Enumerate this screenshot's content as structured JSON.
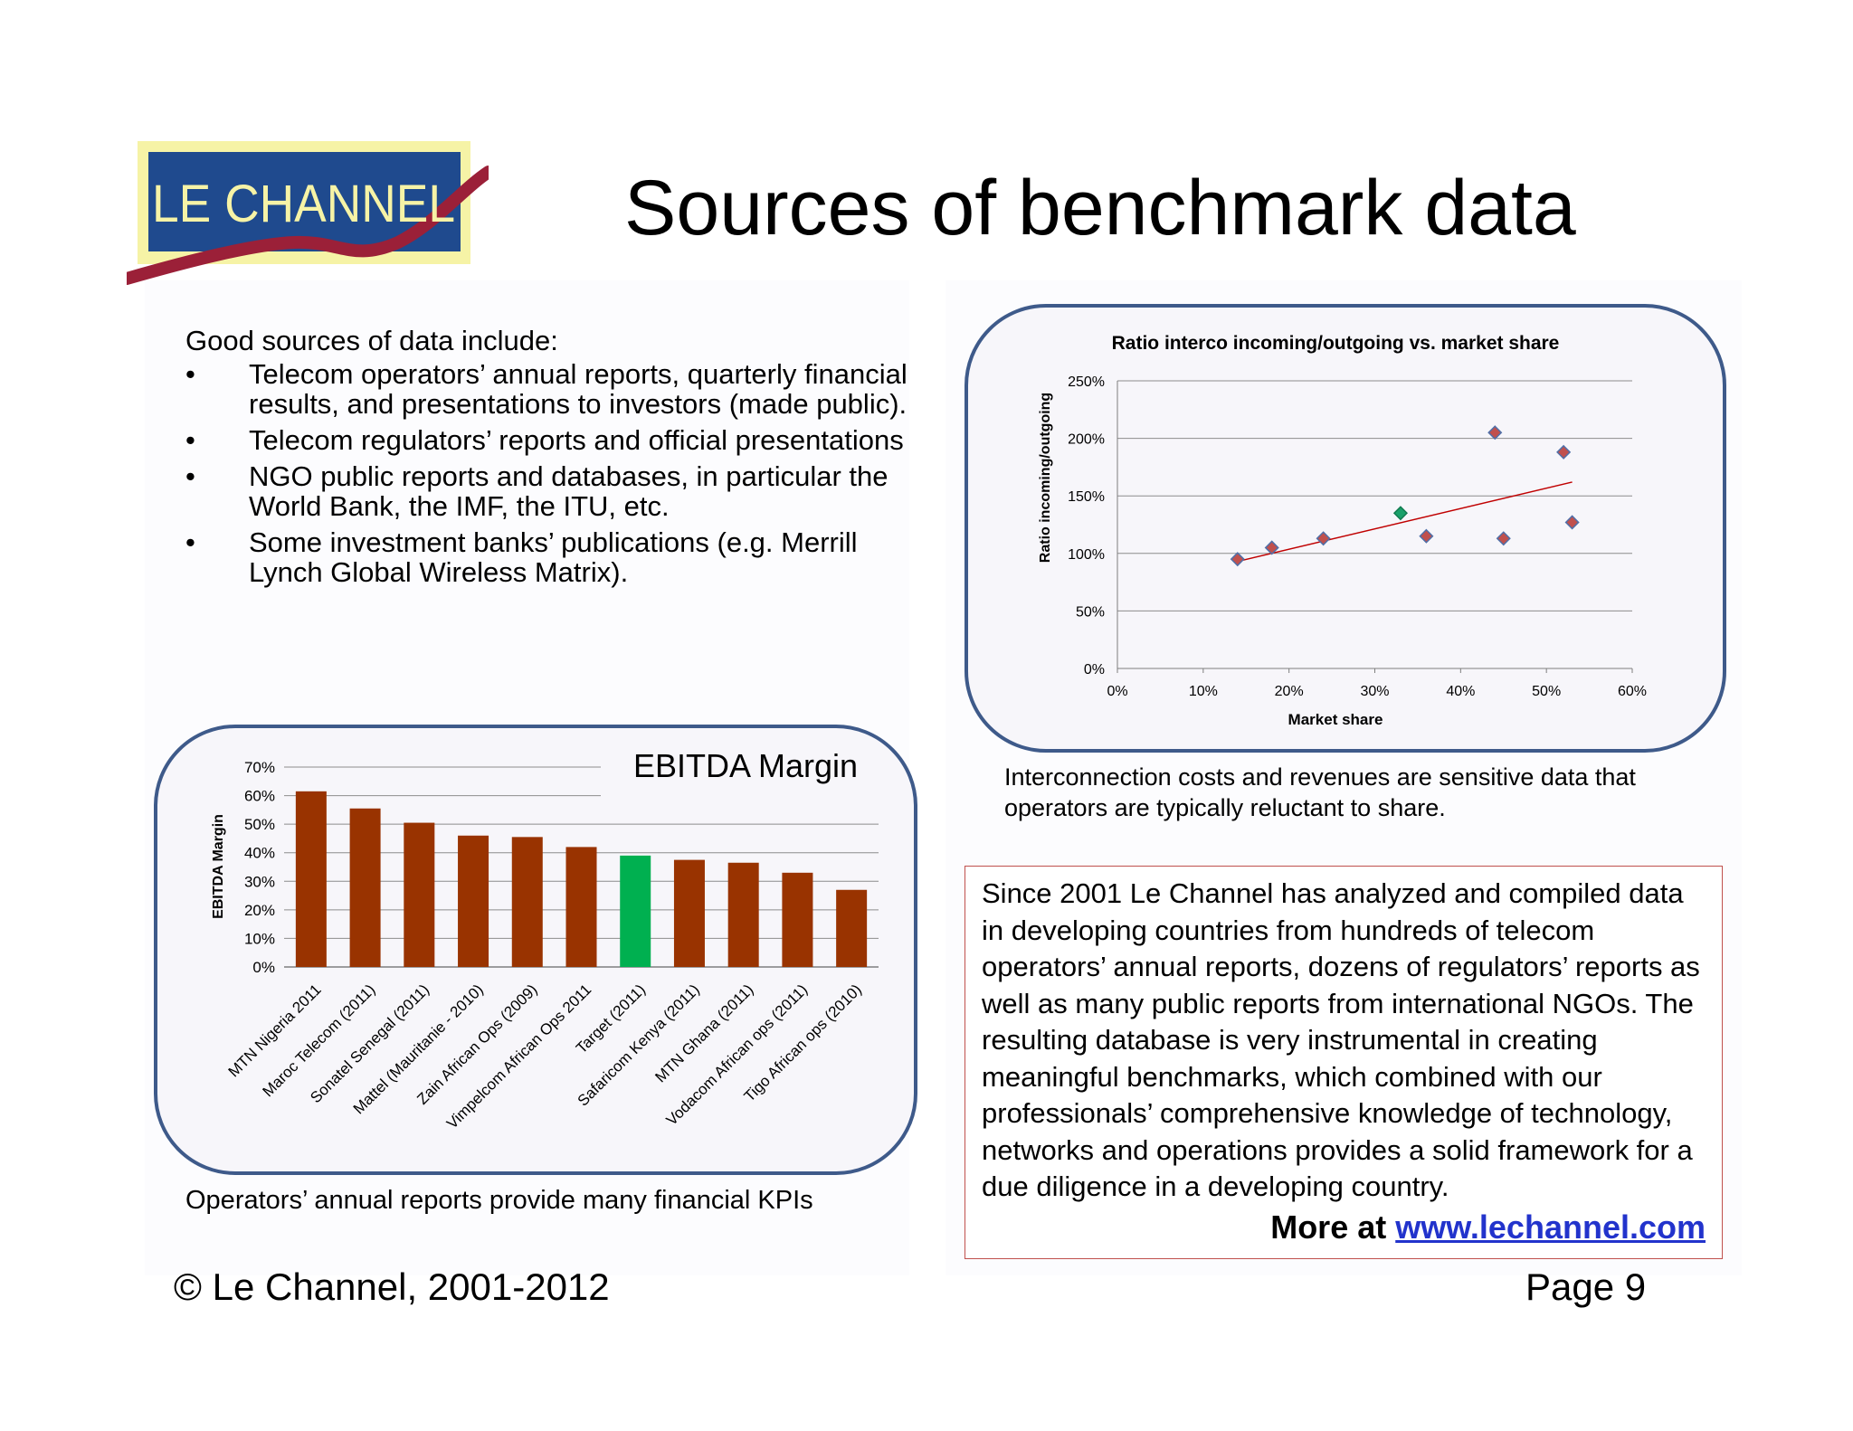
{
  "logo": {
    "text": "LE CHANNEL"
  },
  "title": "Sources of benchmark data",
  "intro": {
    "lead": "Good sources of data include:",
    "bullets": [
      "Telecom operators’ annual reports, quarterly financial results, and presentations to investors (made public).",
      "Telecom regulators’ reports and official presentations",
      "NGO public reports and databases, in particular the World Bank, the IMF, the ITU, etc.",
      "Some investment banks’ publications (e.g. Merrill Lynch Global Wireless Matrix)."
    ],
    "bullet_symbol": "•"
  },
  "bar_chart_caption": "Operators’ annual reports provide many financial KPIs",
  "scatter_caption": "Interconnection costs and revenues are sensitive data that operators are typically reluctant to share.",
  "info": {
    "text": "Since 2001 Le Channel has analyzed and compiled data in developing countries from hundreds of telecom operators’ annual reports, dozens of regulators’ reports as well as many public reports from international NGOs. The resulting database is very instrumental in creating meaningful benchmarks, which combined with our professionals’ comprehensive knowledge of technology, networks and operations provides a solid framework for a due diligence in a developing country.",
    "more_label": "More at ",
    "link": "www.lechannel.com"
  },
  "footer": {
    "copyright": "© Le Channel, 2001-2012",
    "page": "Page 9"
  },
  "colors": {
    "bar": "#993300",
    "highlight": "#00b050",
    "panel_border": "#3e5a8a",
    "info_border": "#c0504d",
    "trend": "#c00000"
  },
  "chart_data": [
    {
      "type": "bar",
      "title": "EBITDA Margin",
      "ylabel": "EBITDA Margin",
      "xlabel": "",
      "ylim": [
        0,
        70
      ],
      "yticks": [
        "0%",
        "10%",
        "20%",
        "30%",
        "40%",
        "50%",
        "60%",
        "70%"
      ],
      "categories": [
        "MTN Nigeria 2011",
        "Maroc Telecom (2011)",
        "Sonatel Senegal (2011)",
        "Mattel (Mauritanie - 2010)",
        "Zain African Ops (2009)",
        "Vimpelcom African Ops 2011",
        "Target (2011)",
        "Safaricom Kenya (2011)",
        "MTN Ghana (2011)",
        "Vodacom African ops (2011)",
        "Tigo African ops (2010)"
      ],
      "values": [
        61.5,
        55.5,
        50.5,
        46,
        45.5,
        42,
        39,
        37.5,
        36.5,
        33,
        27
      ],
      "highlighted_category": "Target (2011)",
      "grid": true
    },
    {
      "type": "scatter",
      "title": "Ratio interco incoming/outgoing  vs. market share",
      "xlabel": "Market share",
      "ylabel": "Ratio incoming/outgoing",
      "xlim": [
        0,
        60
      ],
      "ylim": [
        0,
        250
      ],
      "xticks": [
        "0%",
        "10%",
        "20%",
        "30%",
        "40%",
        "50%",
        "60%"
      ],
      "yticks": [
        "0%",
        "50%",
        "100%",
        "150%",
        "200%",
        "250%"
      ],
      "points": [
        {
          "x": 14,
          "y": 95
        },
        {
          "x": 18,
          "y": 105
        },
        {
          "x": 24,
          "y": 113
        },
        {
          "x": 33,
          "y": 135,
          "highlight": true
        },
        {
          "x": 36,
          "y": 115
        },
        {
          "x": 44,
          "y": 205
        },
        {
          "x": 45,
          "y": 113
        },
        {
          "x": 52,
          "y": 188
        },
        {
          "x": 53,
          "y": 127
        }
      ],
      "trendline": {
        "x": [
          14,
          53
        ],
        "y": [
          93,
          162
        ]
      },
      "grid": true
    }
  ]
}
